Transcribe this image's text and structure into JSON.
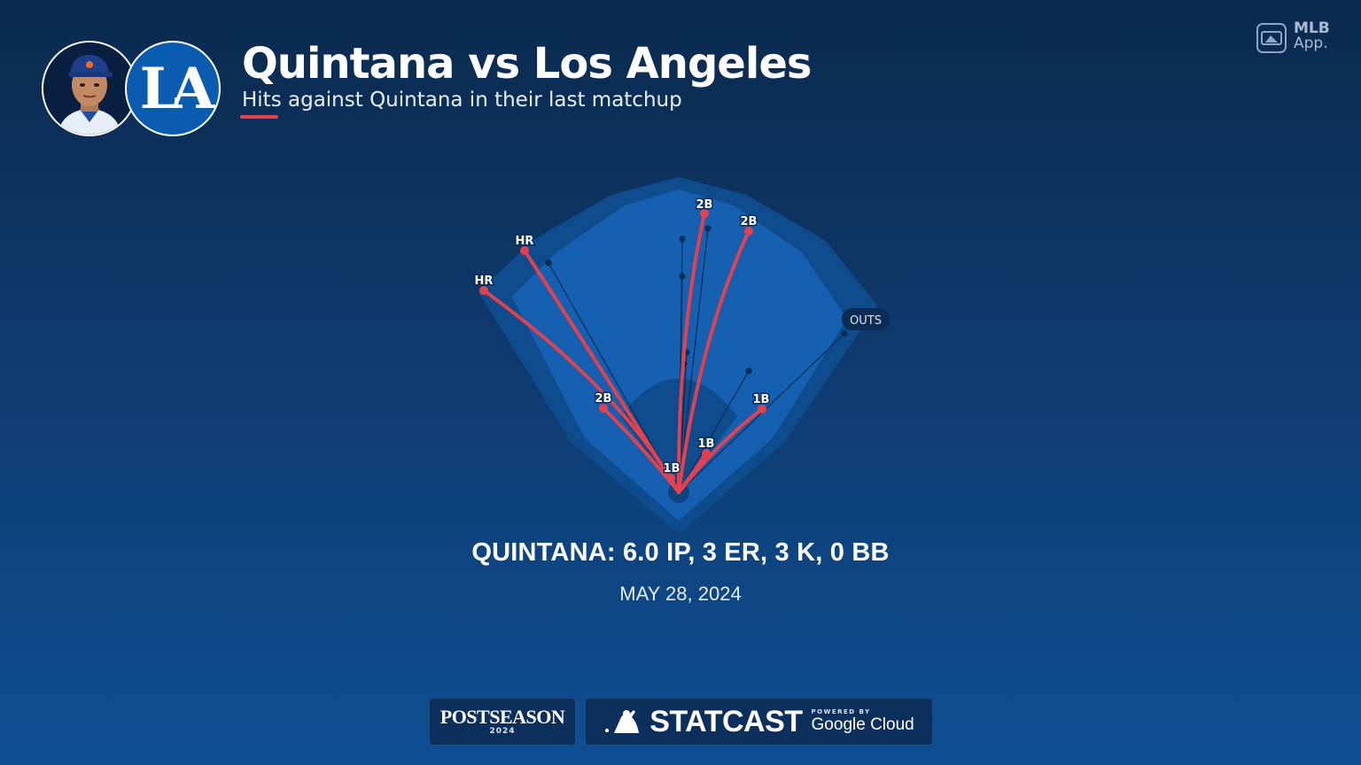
{
  "header": {
    "title": "Quintana vs Los Angeles",
    "subtitle": "Hits against Quintana in their last matchup",
    "team_logo_text": "LA"
  },
  "app_logo": {
    "line1": "MLB",
    "line2": "App."
  },
  "spray_chart": {
    "outs_label": "OUTS",
    "hits": [
      {
        "result": "HR"
      },
      {
        "result": "HR"
      },
      {
        "result": "2B"
      },
      {
        "result": "2B"
      },
      {
        "result": "2B"
      },
      {
        "result": "1B"
      },
      {
        "result": "1B"
      },
      {
        "result": "1B"
      }
    ]
  },
  "summary": {
    "stat_line": "QUINTANA: 6.0 IP, 3 ER, 3 K, 0 BB",
    "date": "MAY 28, 2024"
  },
  "footer": {
    "postseason": "POSTSEASON",
    "postseason_year": "2024",
    "statcast": "STATCAST",
    "powered_by": "POWERED BY",
    "google_cloud": "Google Cloud"
  },
  "colors": {
    "hit_line": "#e4414f",
    "field_inner": "#1560b0",
    "field_outer": "#0f4c8e",
    "accent": "#e4414f"
  }
}
